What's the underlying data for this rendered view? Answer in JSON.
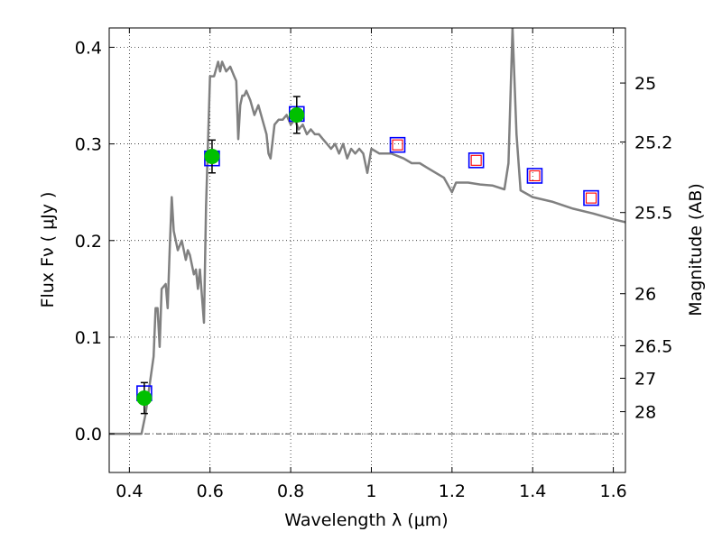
{
  "chart_data": {
    "type": "scatter",
    "xlabel": "Wavelength  λ (μm)",
    "ylabel": "Flux  Fν  ( μJy )",
    "y2label": "Magnitude (AB)",
    "xlim": [
      0.35,
      1.63
    ],
    "ylim": [
      -0.04,
      0.42
    ],
    "grid": true,
    "x_ticks": [
      0.4,
      0.6,
      0.8,
      1.0,
      1.2,
      1.4,
      1.6
    ],
    "x_tick_labels": [
      "0.4",
      "0.6",
      "0.8",
      "1",
      "1.2",
      "1.4",
      "1.6"
    ],
    "y_ticks": [
      0.0,
      0.1,
      0.2,
      0.3,
      0.4
    ],
    "y_tick_labels": [
      "0.0",
      "0.1",
      "0.2",
      "0.3",
      "0.4"
    ],
    "mag_ticks": [
      {
        "label": "25",
        "flux": 0.363
      },
      {
        "label": "25.2",
        "flux": 0.302
      },
      {
        "label": "25.5",
        "flux": 0.229
      },
      {
        "label": "26",
        "flux": 0.145
      },
      {
        "label": "26.5",
        "flux": 0.0912
      },
      {
        "label": "27",
        "flux": 0.0575
      },
      {
        "label": "28",
        "flux": 0.0229
      }
    ],
    "series": [
      {
        "kind": "line",
        "color": "#808080",
        "points": [
          [
            0.35,
            0.0
          ],
          [
            0.43,
            0.0
          ],
          [
            0.435,
            0.01
          ],
          [
            0.44,
            0.02
          ],
          [
            0.45,
            0.05
          ],
          [
            0.46,
            0.08
          ],
          [
            0.465,
            0.13
          ],
          [
            0.47,
            0.13
          ],
          [
            0.475,
            0.09
          ],
          [
            0.48,
            0.15
          ],
          [
            0.49,
            0.155
          ],
          [
            0.495,
            0.13
          ],
          [
            0.5,
            0.19
          ],
          [
            0.505,
            0.245
          ],
          [
            0.51,
            0.21
          ],
          [
            0.52,
            0.19
          ],
          [
            0.53,
            0.2
          ],
          [
            0.54,
            0.18
          ],
          [
            0.545,
            0.19
          ],
          [
            0.55,
            0.185
          ],
          [
            0.56,
            0.165
          ],
          [
            0.565,
            0.17
          ],
          [
            0.57,
            0.15
          ],
          [
            0.575,
            0.17
          ],
          [
            0.585,
            0.115
          ],
          [
            0.59,
            0.235
          ],
          [
            0.6,
            0.37
          ],
          [
            0.61,
            0.37
          ],
          [
            0.62,
            0.385
          ],
          [
            0.625,
            0.375
          ],
          [
            0.63,
            0.385
          ],
          [
            0.64,
            0.375
          ],
          [
            0.65,
            0.38
          ],
          [
            0.66,
            0.37
          ],
          [
            0.665,
            0.365
          ],
          [
            0.67,
            0.305
          ],
          [
            0.675,
            0.34
          ],
          [
            0.68,
            0.35
          ],
          [
            0.685,
            0.35
          ],
          [
            0.69,
            0.355
          ],
          [
            0.7,
            0.345
          ],
          [
            0.71,
            0.33
          ],
          [
            0.72,
            0.34
          ],
          [
            0.73,
            0.325
          ],
          [
            0.74,
            0.31
          ],
          [
            0.745,
            0.29
          ],
          [
            0.75,
            0.285
          ],
          [
            0.76,
            0.32
          ],
          [
            0.77,
            0.325
          ],
          [
            0.78,
            0.325
          ],
          [
            0.79,
            0.33
          ],
          [
            0.8,
            0.32
          ],
          [
            0.81,
            0.325
          ],
          [
            0.82,
            0.315
          ],
          [
            0.83,
            0.32
          ],
          [
            0.84,
            0.31
          ],
          [
            0.85,
            0.315
          ],
          [
            0.86,
            0.31
          ],
          [
            0.87,
            0.31
          ],
          [
            0.88,
            0.305
          ],
          [
            0.89,
            0.3
          ],
          [
            0.9,
            0.295
          ],
          [
            0.91,
            0.3
          ],
          [
            0.92,
            0.29
          ],
          [
            0.93,
            0.3
          ],
          [
            0.94,
            0.285
          ],
          [
            0.95,
            0.295
          ],
          [
            0.96,
            0.29
          ],
          [
            0.97,
            0.295
          ],
          [
            0.98,
            0.29
          ],
          [
            0.99,
            0.27
          ],
          [
            1.0,
            0.295
          ],
          [
            1.02,
            0.29
          ],
          [
            1.05,
            0.29
          ],
          [
            1.08,
            0.285
          ],
          [
            1.1,
            0.28
          ],
          [
            1.12,
            0.28
          ],
          [
            1.14,
            0.275
          ],
          [
            1.16,
            0.27
          ],
          [
            1.18,
            0.265
          ],
          [
            1.2,
            0.25
          ],
          [
            1.21,
            0.26
          ],
          [
            1.24,
            0.26
          ],
          [
            1.27,
            0.258
          ],
          [
            1.3,
            0.257
          ],
          [
            1.33,
            0.253
          ],
          [
            1.34,
            0.28
          ],
          [
            1.35,
            0.42
          ],
          [
            1.36,
            0.31
          ],
          [
            1.37,
            0.252
          ],
          [
            1.4,
            0.245
          ],
          [
            1.45,
            0.24
          ],
          [
            1.5,
            0.233
          ],
          [
            1.55,
            0.228
          ],
          [
            1.6,
            0.222
          ],
          [
            1.63,
            0.219
          ]
        ]
      },
      {
        "kind": "squares",
        "color": "#0000ff",
        "points": [
          [
            0.437,
            0.042
          ],
          [
            0.605,
            0.285
          ],
          [
            0.815,
            0.331
          ],
          [
            1.065,
            0.299
          ],
          [
            1.26,
            0.283
          ],
          [
            1.405,
            0.267
          ],
          [
            1.545,
            0.244
          ]
        ]
      },
      {
        "kind": "inner-squares",
        "color": "#ff0000",
        "points": [
          [
            1.065,
            0.299
          ],
          [
            1.26,
            0.283
          ],
          [
            1.405,
            0.267
          ],
          [
            1.545,
            0.244
          ]
        ]
      },
      {
        "kind": "circles",
        "color": "#00c000",
        "points": [
          {
            "x": 0.437,
            "y": 0.037,
            "err": 0.016
          },
          {
            "x": 0.605,
            "y": 0.287,
            "err": 0.017
          },
          {
            "x": 0.815,
            "y": 0.33,
            "err": 0.019
          }
        ]
      }
    ]
  }
}
